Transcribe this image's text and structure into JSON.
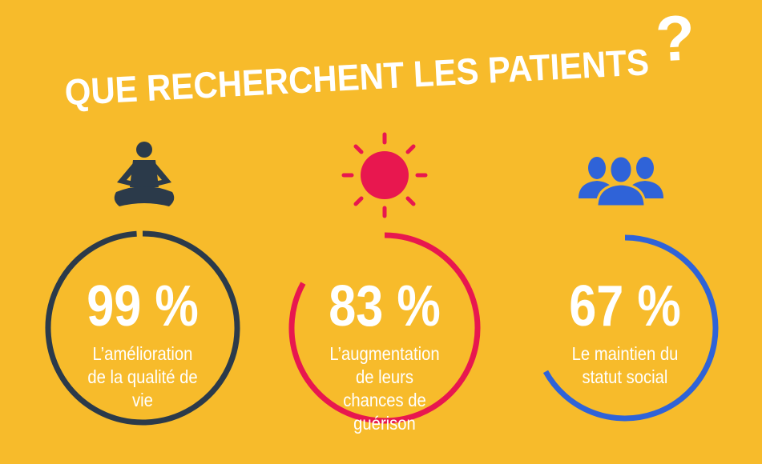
{
  "chart_data": {
    "type": "ring",
    "title": "QUE RECHERCHENT LES PATIENTS",
    "title_mark": "?",
    "categories": [
      "L’amélioration de la qualité de vie",
      "L’augmentation de leurs chances de guérison",
      "Le maintien du statut social"
    ],
    "values": [
      99,
      83,
      67
    ],
    "value_labels": [
      "99 %",
      "83 %",
      "67 %"
    ],
    "colors": [
      "#2b3a4a",
      "#e8174f",
      "#2f63d8"
    ],
    "ylim": [
      0,
      100
    ]
  }
}
